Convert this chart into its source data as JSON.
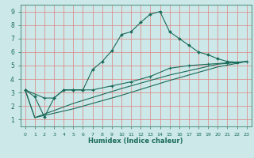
{
  "xlabel": "Humidex (Indice chaleur)",
  "background_color": "#cce8e8",
  "grid_color": "#e08080",
  "line_color": "#1a6b5a",
  "xlim": [
    -0.5,
    23.5
  ],
  "ylim": [
    0.5,
    9.5
  ],
  "xticks": [
    0,
    1,
    2,
    3,
    4,
    5,
    6,
    7,
    8,
    9,
    10,
    11,
    12,
    13,
    14,
    15,
    16,
    17,
    18,
    19,
    20,
    21,
    22,
    23
  ],
  "yticks": [
    1,
    2,
    3,
    4,
    5,
    6,
    7,
    8,
    9
  ],
  "series1_x": [
    0,
    1,
    2,
    3,
    4,
    5,
    6,
    7,
    8,
    9,
    10,
    11,
    12,
    13,
    14,
    15,
    16,
    17,
    18,
    19,
    20,
    21,
    22
  ],
  "series1_y": [
    3.2,
    2.7,
    1.2,
    2.6,
    3.2,
    3.2,
    3.2,
    4.7,
    5.3,
    6.1,
    7.3,
    7.5,
    8.2,
    8.8,
    9.0,
    7.5,
    7.0,
    6.5,
    6.0,
    5.8,
    5.5,
    5.3,
    5.25
  ],
  "series2_x": [
    0,
    2,
    3,
    4,
    5,
    6,
    7,
    9,
    11,
    13,
    15,
    17,
    19,
    21,
    23
  ],
  "series2_y": [
    3.2,
    2.6,
    2.6,
    3.2,
    3.2,
    3.2,
    3.2,
    3.5,
    3.8,
    4.2,
    4.8,
    5.0,
    5.1,
    5.2,
    5.3
  ],
  "series3_x": [
    0,
    1,
    5,
    10,
    15,
    20,
    23
  ],
  "series3_y": [
    3.2,
    1.15,
    1.8,
    2.8,
    3.9,
    4.9,
    5.3
  ],
  "series4_x": [
    0,
    1,
    5,
    10,
    15,
    20,
    23
  ],
  "series4_y": [
    3.2,
    1.15,
    2.2,
    3.3,
    4.3,
    5.1,
    5.3
  ]
}
